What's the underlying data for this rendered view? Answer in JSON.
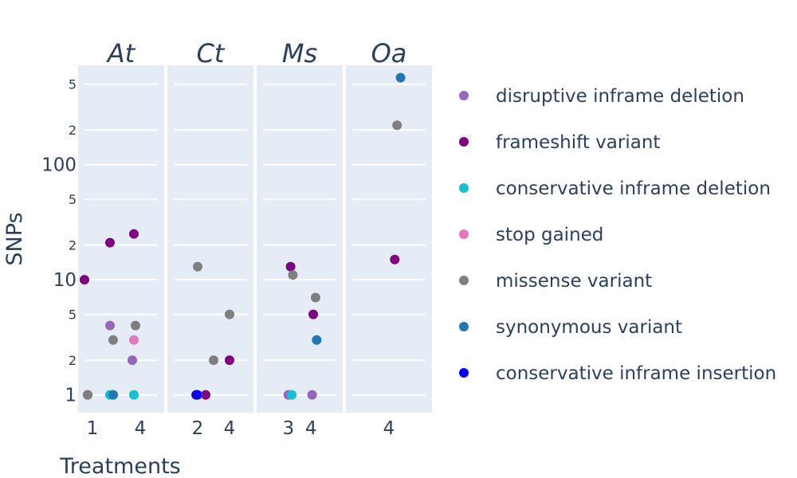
{
  "chart_data": {
    "type": "scatter",
    "xlabel": "Treatments",
    "ylabel": "SNPs",
    "y_scale": "log",
    "ylim": [
      0.7,
      730
    ],
    "y_major_ticks": [
      1,
      10,
      100
    ],
    "y_minor_ticks": [
      2,
      5,
      20,
      50,
      200,
      500
    ],
    "y_minor_tick_labels": [
      "2",
      "5",
      "2",
      "5",
      "2",
      "5"
    ],
    "facets": [
      {
        "title": "At",
        "xlim": [
          0.1,
          5.5
        ],
        "x_ticks": [
          1,
          4
        ]
      },
      {
        "title": "Ct",
        "xlim": [
          0.1,
          5.5
        ],
        "x_ticks": [
          2,
          4
        ]
      },
      {
        "title": "Ms",
        "xlim": [
          1.6,
          5.4
        ],
        "x_ticks": [
          3,
          4
        ]
      },
      {
        "title": "Oa",
        "xlim": [
          0.3,
          7.7
        ],
        "x_ticks": [
          4
        ]
      }
    ],
    "legend_position": "right",
    "series": [
      {
        "name": "disruptive inframe deletion",
        "color": "#9467bd",
        "points": [
          {
            "facet": "At",
            "x": 2.1,
            "y": 4
          },
          {
            "facet": "At",
            "x": 3.5,
            "y": 2
          },
          {
            "facet": "Ms",
            "x": 3,
            "y": 1
          },
          {
            "facet": "Ms",
            "x": 4.05,
            "y": 1
          }
        ]
      },
      {
        "name": "frameshift variant",
        "color": "#800080",
        "points": [
          {
            "facet": "At",
            "x": 0.5,
            "y": 10
          },
          {
            "facet": "At",
            "x": 2.1,
            "y": 21
          },
          {
            "facet": "At",
            "x": 3.6,
            "y": 25
          },
          {
            "facet": "At",
            "x": 0.7,
            "y": 1
          },
          {
            "facet": "Ct",
            "x": 1.9,
            "y": 1
          },
          {
            "facet": "Ct",
            "x": 2.5,
            "y": 1
          },
          {
            "facet": "Ct",
            "x": 4,
            "y": 2
          },
          {
            "facet": "Ms",
            "x": 3.1,
            "y": 13
          },
          {
            "facet": "Ms",
            "x": 4.1,
            "y": 5
          },
          {
            "facet": "Oa",
            "x": 4.5,
            "y": 15
          }
        ]
      },
      {
        "name": "conservative inframe deletion",
        "color": "#17becf",
        "points": [
          {
            "facet": "At",
            "x": 2.1,
            "y": 1
          },
          {
            "facet": "At",
            "x": 3.6,
            "y": 1
          },
          {
            "facet": "Ms",
            "x": 3.15,
            "y": 1
          }
        ]
      },
      {
        "name": "stop gained",
        "color": "#e377c2",
        "points": [
          {
            "facet": "At",
            "x": 3.6,
            "y": 3
          }
        ]
      },
      {
        "name": "missense variant",
        "color": "#7f7f7f",
        "points": [
          {
            "facet": "At",
            "x": 0.7,
            "y": 1
          },
          {
            "facet": "At",
            "x": 2.3,
            "y": 3
          },
          {
            "facet": "At",
            "x": 3.7,
            "y": 4
          },
          {
            "facet": "Ct",
            "x": 2,
            "y": 13
          },
          {
            "facet": "Ct",
            "x": 3,
            "y": 2
          },
          {
            "facet": "Ct",
            "x": 4,
            "y": 5
          },
          {
            "facet": "Ms",
            "x": 3.2,
            "y": 11
          },
          {
            "facet": "Ms",
            "x": 4.2,
            "y": 7
          },
          {
            "facet": "Oa",
            "x": 4.7,
            "y": 220
          }
        ]
      },
      {
        "name": "synonymous variant",
        "color": "#1f77b4",
        "points": [
          {
            "facet": "At",
            "x": 2.3,
            "y": 1
          },
          {
            "facet": "Ct",
            "x": 2,
            "y": 1
          },
          {
            "facet": "Ms",
            "x": 4.25,
            "y": 3
          },
          {
            "facet": "Oa",
            "x": 5,
            "y": 570
          }
        ]
      },
      {
        "name": "conservative inframe insertion",
        "color": "#0000ff",
        "points": [
          {
            "facet": "Ct",
            "x": 1.95,
            "y": 1
          }
        ]
      }
    ]
  }
}
